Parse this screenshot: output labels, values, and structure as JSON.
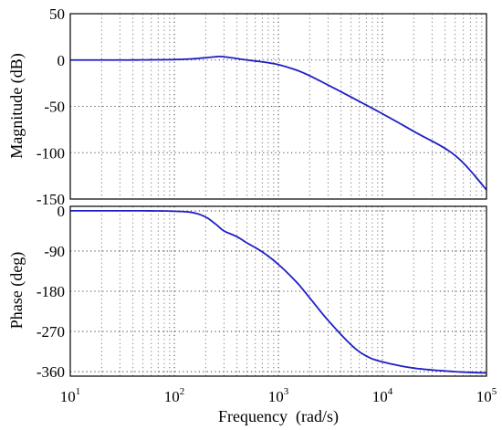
{
  "chart_data": [
    {
      "type": "line",
      "name": "magnitude",
      "ylabel": "Magnitude (dB)",
      "xscale": "log",
      "xlim": [
        10,
        100000
      ],
      "ylim": [
        -150,
        50
      ],
      "yticks": [
        "50",
        "0",
        "-50",
        "-100",
        "-150"
      ],
      "ytick_values": [
        50,
        0,
        -50,
        -100,
        -150
      ],
      "grid": true,
      "x": [
        10,
        30,
        60,
        100,
        150,
        200,
        250,
        280,
        350,
        500,
        700,
        1000,
        1500,
        2000,
        3000,
        5000,
        10000,
        20000,
        50000,
        100000
      ],
      "y": [
        0,
        0,
        0.2,
        0.5,
        1.3,
        2.5,
        3.5,
        3.8,
        2.5,
        0,
        -2,
        -5,
        -11,
        -17,
        -27,
        -40,
        -58,
        -77,
        -103,
        -140
      ]
    },
    {
      "type": "line",
      "name": "phase",
      "ylabel": "Phase (deg)",
      "xlabel": "Frequency  (rad/s)",
      "xscale": "log",
      "xlim": [
        10,
        100000
      ],
      "ylim": [
        -370,
        10
      ],
      "yticks": [
        "0",
        "-90",
        "-180",
        "-270",
        "-360"
      ],
      "ytick_values": [
        0,
        -90,
        -180,
        -270,
        -360
      ],
      "xticks": [
        {
          "base": "10",
          "exp": "1"
        },
        {
          "base": "10",
          "exp": "2"
        },
        {
          "base": "10",
          "exp": "3"
        },
        {
          "base": "10",
          "exp": "4"
        },
        {
          "base": "10",
          "exp": "5"
        }
      ],
      "xtick_values": [
        10,
        100,
        1000,
        10000,
        100000
      ],
      "grid": true,
      "x": [
        10,
        50,
        100,
        150,
        200,
        250,
        300,
        400,
        500,
        700,
        1000,
        1500,
        2000,
        3000,
        5000,
        7000,
        10000,
        20000,
        50000,
        100000
      ],
      "y": [
        0,
        0,
        -1,
        -4,
        -14,
        -30,
        -45,
        -58,
        -72,
        -92,
        -120,
        -160,
        -195,
        -245,
        -300,
        -325,
        -338,
        -352,
        -360,
        -363
      ]
    }
  ]
}
